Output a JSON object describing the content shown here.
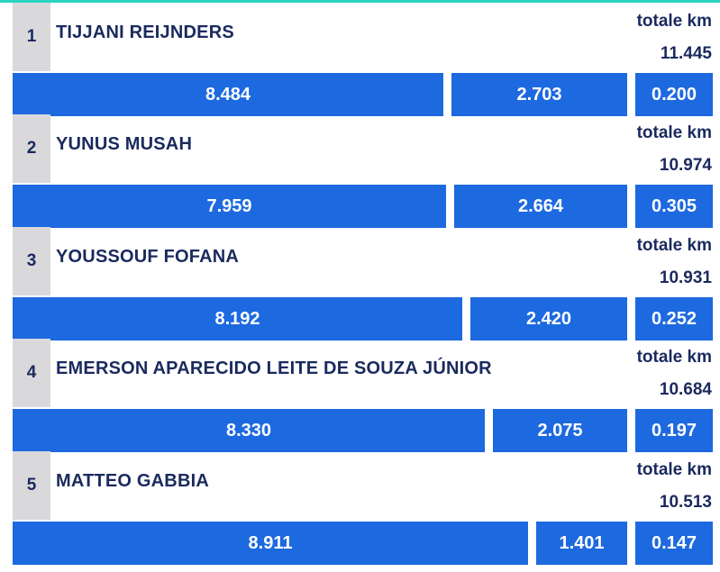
{
  "chart_data": {
    "type": "table",
    "unit_label": "totale km",
    "rows": [
      {
        "rank": "1",
        "name": "TIJJANI REIJNDERS",
        "total": "11.445",
        "values": [
          8.484,
          2.703,
          0.2
        ],
        "labels": [
          "8.484",
          "2.703",
          "0.200"
        ]
      },
      {
        "rank": "2",
        "name": "YUNUS MUSAH",
        "total": "10.974",
        "values": [
          7.959,
          2.664,
          0.305
        ],
        "labels": [
          "7.959",
          "2.664",
          "0.305"
        ]
      },
      {
        "rank": "3",
        "name": "YOUSSOUF FOFANA",
        "total": "10.931",
        "values": [
          8.192,
          2.42,
          0.252
        ],
        "labels": [
          "8.192",
          "2.420",
          "0.252"
        ]
      },
      {
        "rank": "4",
        "name": "EMERSON APARECIDO LEITE DE SOUZA JÚNIOR",
        "total": "10.684",
        "values": [
          8.33,
          2.075,
          0.197
        ],
        "labels": [
          "8.330",
          "2.075",
          "0.197"
        ]
      },
      {
        "rank": "5",
        "name": "MATTEO GABBIA",
        "total": "10.513",
        "values": [
          8.911,
          1.401,
          0.147
        ],
        "labels": [
          "8.911",
          "1.401",
          "0.147"
        ]
      }
    ]
  },
  "colors": {
    "bar": "#1d69e0",
    "text": "#1a2a5e",
    "rank_strip": "#d9d9dc",
    "accent_line": "#2ad4c0"
  }
}
